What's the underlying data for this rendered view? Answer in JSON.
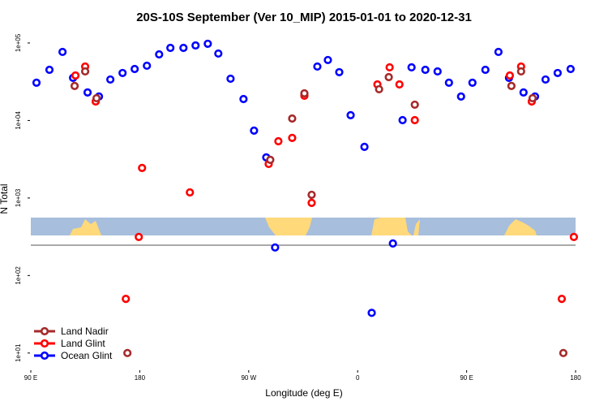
{
  "chart_data": {
    "type": "scatter",
    "title": "20S-10S September (Ver 10_MIP)   2015-01-01 to 2020-12-31",
    "x_label": "Longitude (deg E)",
    "y_label": "N Total",
    "log_y": true,
    "legend": "bottom-left",
    "xlim": [
      90,
      540
    ],
    "xticks": [
      {
        "value": 90,
        "label": "90 E"
      },
      {
        "value": 180,
        "label": "180"
      },
      {
        "value": 270,
        "label": "90 W"
      },
      {
        "value": 360,
        "label": "0"
      },
      {
        "value": 450,
        "label": "90 E"
      },
      {
        "value": 540,
        "label": "180"
      }
    ],
    "ylim": [
      6,
      140000
    ],
    "yticks": [
      {
        "value": 10,
        "label": "1e+01"
      },
      {
        "value": 100,
        "label": "1e+02"
      },
      {
        "value": 1000,
        "label": "1e+03"
      },
      {
        "value": 10000,
        "label": "1e+04"
      },
      {
        "value": 100000,
        "label": "1e+05"
      }
    ],
    "series": [
      {
        "name": "Land Nadir",
        "color": "#a52a2a",
        "x": [
          126.2,
          134.9,
          144.3,
          169.8,
          287.8,
          305.9,
          316,
          322,
          377.7,
          385.7,
          407.2,
          487,
          495,
          504.5,
          529.9
        ],
        "values": [
          27900,
          43000,
          19400,
          10,
          3110,
          10600,
          22400,
          1100,
          25300,
          36300,
          16000,
          27900,
          43000,
          19400,
          10
        ]
      },
      {
        "name": "Land Glint",
        "color": "#ff0000",
        "x": [
          126.9,
          134.9,
          143.6,
          181.9,
          179.2,
          168.5,
          221.4,
          286.5,
          294.5,
          305.9,
          316,
          322,
          376.3,
          386.4,
          394.5,
          407.2,
          485.7,
          495,
          503.8,
          538.6,
          528.6
        ],
        "values": [
          38100,
          49700,
          17600,
          2440,
          314,
          50,
          1180,
          2750,
          5400,
          5960,
          20900,
          865,
          29200,
          48500,
          29200,
          10100,
          38100,
          49700,
          17600,
          314,
          50
        ]
      },
      {
        "name": "Ocean Glint",
        "color": "#0000ff",
        "x": [
          94.7,
          105.4,
          116.2,
          124.9,
          136.9,
          146.3,
          155.7,
          165.8,
          175.8,
          185.9,
          196,
          205.3,
          216.1,
          226.1,
          236.2,
          244.9,
          255,
          265.7,
          274.4,
          284.5,
          291.8,
          326.7,
          335.4,
          344.8,
          354.2,
          365.6,
          371.6,
          389.1,
          397.1,
          404.5,
          415.9,
          426,
          435.4,
          445.4,
          454.8,
          465.5,
          476.3,
          485,
          497,
          506.5,
          515.2,
          525.2,
          535.9
        ],
        "values": [
          30700,
          45100,
          76700,
          35500,
          23000,
          20400,
          33800,
          41000,
          46200,
          50900,
          71300,
          86500,
          86500,
          93000,
          97700,
          73100,
          34600,
          18900,
          7400,
          3340,
          230,
          49700,
          60300,
          42000,
          11700,
          4570,
          33,
          259,
          10100,
          48500,
          45100,
          43000,
          30700,
          20400,
          30700,
          45100,
          76700,
          35500,
          23000,
          20400,
          33800,
          41000,
          46200
        ]
      }
    ]
  }
}
